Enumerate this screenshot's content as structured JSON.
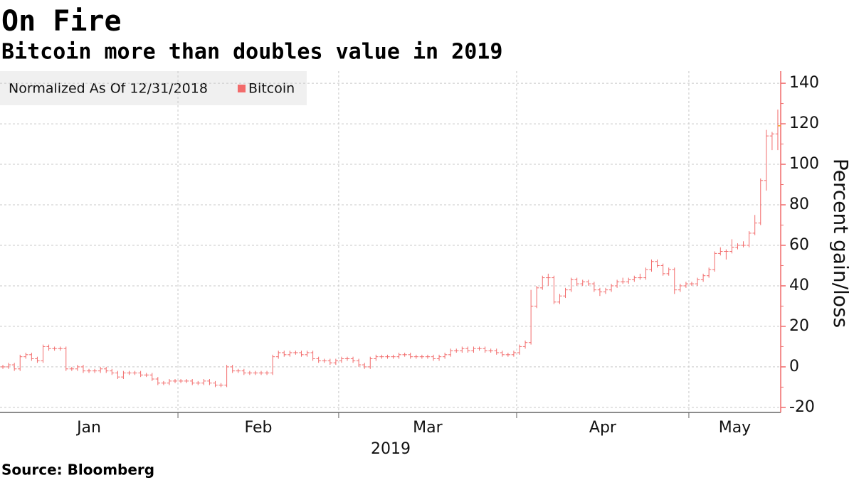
{
  "chart_data": {
    "type": "ohlc",
    "title": "On Fire",
    "subtitle": "Bitcoin more than doubles value in 2019",
    "legend_note": "Normalized As Of 12/31/2018",
    "y_label": "Percent gain/loss",
    "x_label": "2019",
    "source": "Source: Bloomberg",
    "categories": [
      "Jan",
      "Jan",
      "Jan",
      "Jan",
      "Jan",
      "Jan",
      "Jan",
      "Jan",
      "Jan",
      "Jan",
      "Jan",
      "Jan",
      "Jan",
      "Jan",
      "Jan",
      "Jan",
      "Jan",
      "Jan",
      "Jan",
      "Jan",
      "Jan",
      "Jan",
      "Jan",
      "Jan",
      "Jan",
      "Jan",
      "Jan",
      "Jan",
      "Jan",
      "Jan",
      "Jan",
      "Feb",
      "Feb",
      "Feb",
      "Feb",
      "Feb",
      "Feb",
      "Feb",
      "Feb",
      "Feb",
      "Feb",
      "Feb",
      "Feb",
      "Feb",
      "Feb",
      "Feb",
      "Feb",
      "Feb",
      "Feb",
      "Feb",
      "Feb",
      "Feb",
      "Feb",
      "Feb",
      "Feb",
      "Feb",
      "Feb",
      "Feb",
      "Feb",
      "Mar",
      "Mar",
      "Mar",
      "Mar",
      "Mar",
      "Mar",
      "Mar",
      "Mar",
      "Mar",
      "Mar",
      "Mar",
      "Mar",
      "Mar",
      "Mar",
      "Mar",
      "Mar",
      "Mar",
      "Mar",
      "Mar",
      "Mar",
      "Mar",
      "Mar",
      "Mar",
      "Mar",
      "Mar",
      "Mar",
      "Mar",
      "Mar",
      "Mar",
      "Mar",
      "Mar",
      "Apr",
      "Apr",
      "Apr",
      "Apr",
      "Apr",
      "Apr",
      "Apr",
      "Apr",
      "Apr",
      "Apr",
      "Apr",
      "Apr",
      "Apr",
      "Apr",
      "Apr",
      "Apr",
      "Apr",
      "Apr",
      "Apr",
      "Apr",
      "Apr",
      "Apr",
      "Apr",
      "Apr",
      "Apr",
      "Apr",
      "Apr",
      "Apr",
      "Apr",
      "Apr",
      "May",
      "May",
      "May",
      "May",
      "May",
      "May",
      "May",
      "May",
      "May",
      "May",
      "May",
      "May",
      "May",
      "May",
      "May",
      "May"
    ],
    "series": [
      {
        "name": "Bitcoin",
        "color": "#f26b6b",
        "open": [
          0,
          0,
          1,
          -1,
          5,
          6,
          4,
          3,
          10,
          9,
          9,
          9,
          -1,
          -1,
          0,
          -2,
          -2,
          -2,
          -1,
          -2,
          -3,
          -5,
          -3,
          -3,
          -3,
          -4,
          -4,
          -6,
          -8,
          -8,
          -7,
          -7,
          -7,
          -7,
          -8,
          -8,
          -7,
          -8,
          -9,
          -9,
          0,
          -2,
          -2,
          -3,
          -3,
          -3,
          -3,
          -3,
          5,
          7,
          6,
          7,
          7,
          6,
          7,
          4,
          3,
          3,
          2,
          3,
          4,
          4,
          3,
          1,
          0,
          4,
          5,
          5,
          5,
          5,
          6,
          6,
          5,
          5,
          5,
          5,
          4,
          5,
          6,
          8,
          8,
          9,
          8,
          9,
          9,
          8,
          8,
          7,
          6,
          6,
          7,
          10,
          12,
          30,
          39,
          44,
          44,
          32,
          35,
          38,
          43,
          41,
          42,
          41,
          38,
          37,
          38,
          40,
          42,
          42,
          43,
          44,
          44,
          48,
          52,
          50,
          46,
          48,
          38,
          40,
          41,
          41,
          43,
          45,
          48,
          56,
          57,
          57,
          59,
          60,
          60,
          66,
          71,
          92,
          114,
          115
        ],
        "high": [
          1,
          2,
          2,
          6,
          7,
          7,
          5,
          11,
          11,
          10,
          10,
          10,
          0,
          1,
          1,
          -1,
          -1,
          0,
          0,
          -1,
          -2,
          -2,
          -2,
          -2,
          -2,
          -3,
          -3,
          -5,
          -7,
          -6,
          -6,
          -6,
          -6,
          -6,
          -7,
          -6,
          -6,
          -7,
          -8,
          1,
          1,
          -1,
          -1,
          -2,
          -2,
          -2,
          -2,
          6,
          8,
          8,
          8,
          8,
          8,
          8,
          8,
          5,
          4,
          4,
          4,
          5,
          5,
          5,
          4,
          2,
          5,
          6,
          6,
          6,
          6,
          7,
          7,
          7,
          6,
          6,
          6,
          6,
          6,
          7,
          9,
          9,
          10,
          10,
          10,
          10,
          10,
          9,
          9,
          8,
          7,
          8,
          11,
          13,
          38,
          40,
          45,
          46,
          45,
          36,
          39,
          44,
          44,
          43,
          43,
          42,
          39,
          39,
          41,
          43,
          44,
          44,
          45,
          46,
          49,
          53,
          53,
          51,
          49,
          49,
          41,
          42,
          42,
          44,
          46,
          49,
          57,
          59,
          58,
          63,
          61,
          62,
          67,
          75,
          93,
          117,
          116,
          127
        ],
        "low": [
          -1,
          -1,
          -2,
          -2,
          4,
          3,
          2,
          2,
          8,
          8,
          8,
          -2,
          -2,
          -2,
          -3,
          -3,
          -3,
          -3,
          -3,
          -4,
          -6,
          -6,
          -4,
          -4,
          -5,
          -5,
          -7,
          -9,
          -9,
          -9,
          -8,
          -8,
          -8,
          -9,
          -9,
          -9,
          -9,
          -10,
          -10,
          -10,
          -3,
          -3,
          -4,
          -4,
          -4,
          -4,
          -4,
          -4,
          4,
          5,
          5,
          6,
          5,
          5,
          3,
          2,
          2,
          1,
          1,
          2,
          3,
          2,
          0,
          -1,
          -1,
          3,
          4,
          4,
          4,
          4,
          5,
          4,
          4,
          4,
          4,
          3,
          3,
          4,
          5,
          7,
          7,
          7,
          7,
          8,
          7,
          7,
          6,
          5,
          5,
          5,
          6,
          9,
          11,
          29,
          38,
          40,
          31,
          31,
          34,
          37,
          40,
          40,
          40,
          37,
          35,
          36,
          37,
          39,
          41,
          41,
          42,
          43,
          43,
          47,
          49,
          45,
          45,
          36,
          37,
          39,
          40,
          40,
          42,
          44,
          47,
          55,
          53,
          56,
          58,
          59,
          59,
          65,
          70,
          87,
          107,
          107
        ],
        "close": [
          0,
          1,
          -1,
          5,
          6,
          4,
          3,
          10,
          9,
          9,
          9,
          -1,
          -1,
          0,
          -2,
          -2,
          -2,
          -1,
          -2,
          -3,
          -5,
          -3,
          -3,
          -3,
          -4,
          -4,
          -6,
          -8,
          -8,
          -7,
          -7,
          -7,
          -7,
          -8,
          -8,
          -7,
          -8,
          -9,
          -9,
          0,
          -2,
          -2,
          -3,
          -3,
          -3,
          -3,
          -3,
          5,
          7,
          6,
          7,
          7,
          6,
          7,
          4,
          3,
          3,
          2,
          3,
          4,
          4,
          3,
          1,
          0,
          4,
          5,
          5,
          5,
          5,
          6,
          6,
          5,
          5,
          5,
          5,
          4,
          5,
          6,
          8,
          8,
          9,
          8,
          9,
          9,
          8,
          8,
          7,
          6,
          6,
          7,
          10,
          12,
          30,
          39,
          44,
          44,
          32,
          35,
          38,
          43,
          41,
          42,
          41,
          38,
          37,
          38,
          40,
          42,
          42,
          43,
          44,
          44,
          48,
          52,
          50,
          46,
          48,
          38,
          40,
          41,
          41,
          43,
          45,
          48,
          56,
          57,
          57,
          59,
          60,
          60,
          66,
          71,
          92,
          114,
          115,
          119
        ]
      }
    ],
    "last_price_color": "#f5a623",
    "ylim": [
      -22.5,
      146
    ],
    "yticks": [
      -20,
      0,
      20,
      40,
      60,
      80,
      100,
      120,
      140
    ],
    "grid": true
  }
}
